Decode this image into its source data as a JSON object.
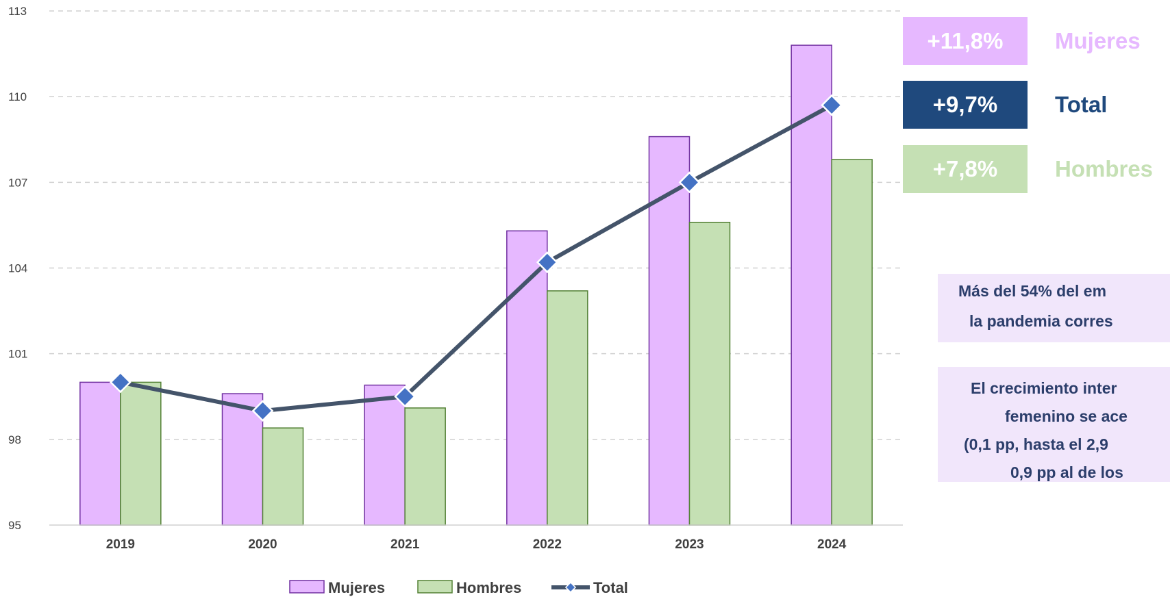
{
  "chart_data": {
    "type": "bar",
    "categories": [
      "2019",
      "2020",
      "2021",
      "2022",
      "2023",
      "2024"
    ],
    "series": [
      {
        "name": "Mujeres",
        "type": "bar",
        "color": "#e6b8ff",
        "stroke": "#7030a0",
        "values": [
          100.0,
          99.6,
          99.9,
          105.3,
          108.6,
          111.8
        ]
      },
      {
        "name": "Hombres",
        "type": "bar",
        "color": "#c5e0b4",
        "stroke": "#538135",
        "values": [
          100.0,
          98.4,
          99.1,
          103.2,
          105.6,
          107.8
        ]
      },
      {
        "name": "Total",
        "type": "line",
        "color": "#44546a",
        "marker_color": "#4472c4",
        "values": [
          100.0,
          99.0,
          99.5,
          104.2,
          107.0,
          109.7
        ]
      }
    ],
    "ylim": [
      95,
      113
    ],
    "yticks": [
      "113",
      "110",
      "107",
      "104",
      "101",
      "98",
      "95"
    ],
    "grid": true,
    "legend": "bottom"
  },
  "badges": [
    {
      "value": "+11,8%",
      "label": "Mujeres",
      "bg": "#e6b8ff",
      "label_color": "#e6b8ff"
    },
    {
      "value": "+9,7%",
      "label": "Total",
      "bg": "#1f497d",
      "label_color": "#1f497d"
    },
    {
      "value": "+7,8%",
      "label": "Hombres",
      "bg": "#c5e0b4",
      "label_color": "#c5e0b4"
    }
  ],
  "notes": {
    "note1": [
      "Más del 54% del em",
      "la pandemia corres"
    ],
    "note2": [
      "El crecimiento inter",
      "femenino se ace",
      "(0,1 pp, hasta el 2,9",
      "0,9 pp al de los"
    ]
  }
}
